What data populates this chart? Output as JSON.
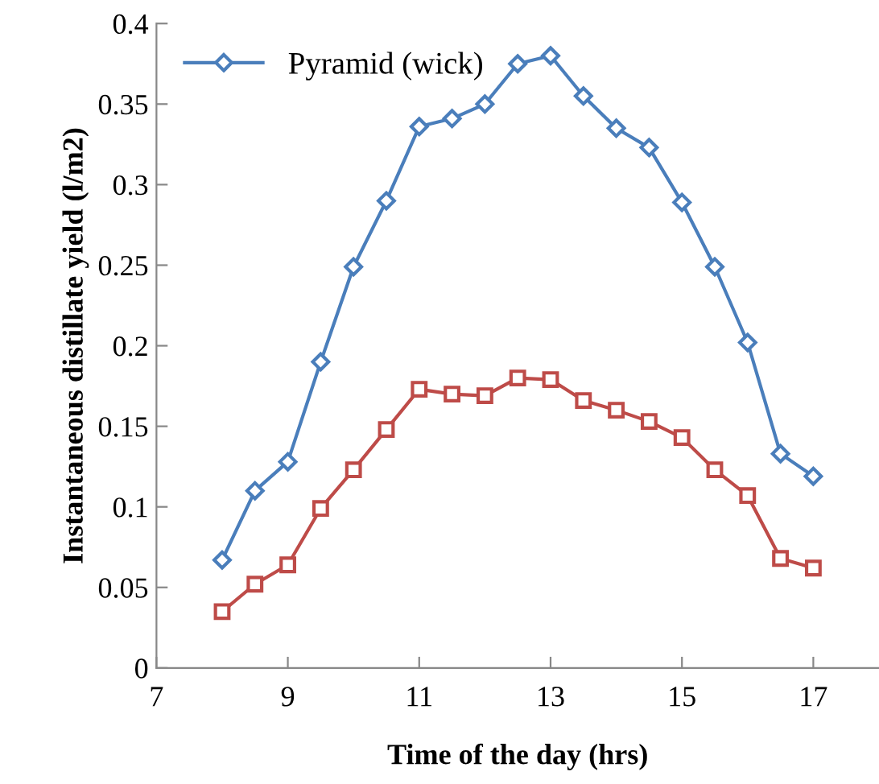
{
  "chart_data": {
    "type": "line",
    "xlabel": "Time of the day (hrs)",
    "ylabel": "Instantaneous distillate yield (l/m2)",
    "x": [
      8,
      8.5,
      9,
      9.5,
      10,
      10.5,
      11,
      11.5,
      12,
      12.5,
      13,
      13.5,
      14,
      14.5,
      15,
      15.5,
      16,
      16.5,
      17
    ],
    "series": [
      {
        "name": "Pyramid (wick)",
        "color": "#4a7ebb",
        "marker": "diamond",
        "values": [
          0.067,
          0.11,
          0.128,
          0.19,
          0.249,
          0.29,
          0.336,
          0.341,
          0.35,
          0.375,
          0.38,
          0.355,
          0.335,
          0.323,
          0.289,
          0.249,
          0.202,
          0.133,
          0.119
        ]
      },
      {
        "color": "#be4b48",
        "marker": "square",
        "values": [
          0.035,
          0.052,
          0.064,
          0.099,
          0.123,
          0.148,
          0.173,
          0.17,
          0.169,
          0.18,
          0.179,
          0.166,
          0.16,
          0.153,
          0.143,
          0.123,
          0.107,
          0.068,
          0.062
        ]
      }
    ],
    "xlim": [
      7,
      18
    ],
    "xticks": [
      7,
      9,
      11,
      13,
      15,
      17
    ],
    "ylim": [
      0,
      0.4
    ],
    "yticks": [
      0,
      0.05,
      0.1,
      0.15,
      0.2,
      0.25,
      0.3,
      0.35,
      0.4
    ],
    "grid": false,
    "legend": "top left",
    "line_style": "solid"
  }
}
